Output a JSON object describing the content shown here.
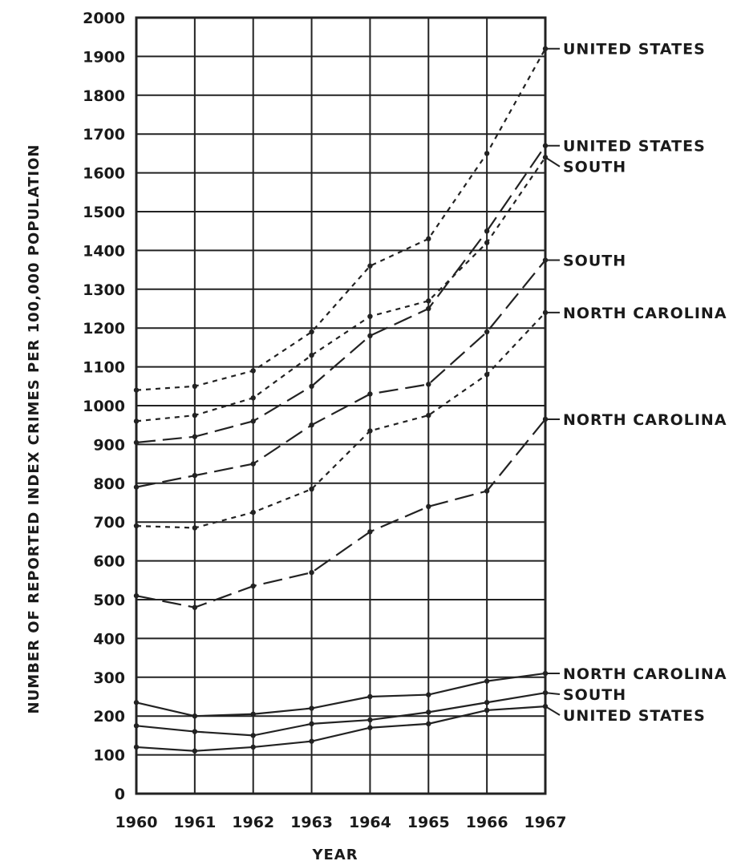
{
  "chart_data": {
    "type": "line",
    "title": "",
    "xlabel": "YEAR",
    "ylabel": "NUMBER OF REPORTED INDEX CRIMES PER 100,000 POPULATION",
    "categories": [
      "1960",
      "1961",
      "1962",
      "1963",
      "1964",
      "1965",
      "1966",
      "1967"
    ],
    "x": [
      1960,
      1961,
      1962,
      1963,
      1964,
      1965,
      1966,
      1967
    ],
    "ylim": [
      0,
      2000
    ],
    "yticks": [
      0,
      100,
      200,
      300,
      400,
      500,
      600,
      700,
      800,
      900,
      1000,
      1100,
      1200,
      1300,
      1400,
      1500,
      1600,
      1700,
      1800,
      1900,
      2000
    ],
    "grid": true,
    "legend": "inline labels at right end of lines",
    "series": [
      {
        "name": "UNITED STATES",
        "style": "short-dash",
        "values": [
          1040,
          1050,
          1090,
          1190,
          1360,
          1430,
          1650,
          1920
        ]
      },
      {
        "name": "UNITED STATES",
        "style": "long-dash",
        "values": [
          905,
          920,
          960,
          1050,
          1180,
          1250,
          1450,
          1670
        ]
      },
      {
        "name": "SOUTH",
        "style": "short-dash",
        "values": [
          960,
          975,
          1020,
          1130,
          1230,
          1270,
          1420,
          1640
        ]
      },
      {
        "name": "SOUTH",
        "style": "long-dash",
        "values": [
          790,
          820,
          850,
          950,
          1030,
          1055,
          1190,
          1375
        ]
      },
      {
        "name": "NORTH CAROLINA",
        "style": "short-dash",
        "values": [
          690,
          685,
          725,
          785,
          935,
          975,
          1080,
          1240
        ]
      },
      {
        "name": "NORTH CAROLINA",
        "style": "long-dash",
        "values": [
          510,
          480,
          535,
          570,
          675,
          740,
          780,
          965
        ]
      },
      {
        "name": "NORTH CAROLINA",
        "style": "solid",
        "values": [
          235,
          200,
          205,
          220,
          250,
          255,
          290,
          310
        ]
      },
      {
        "name": "SOUTH",
        "style": "solid",
        "values": [
          175,
          160,
          150,
          180,
          190,
          210,
          235,
          260
        ]
      },
      {
        "name": "UNITED STATES",
        "style": "solid",
        "values": [
          120,
          110,
          120,
          135,
          170,
          180,
          215,
          225
        ]
      }
    ]
  }
}
